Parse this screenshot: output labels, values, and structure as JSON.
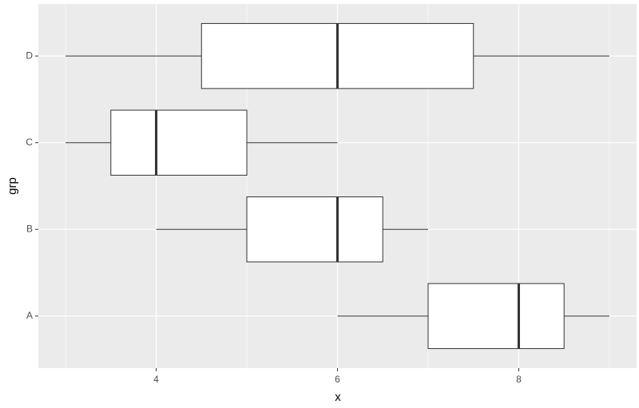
{
  "chart_data": {
    "type": "boxplot",
    "orientation": "horizontal",
    "xlabel": "x",
    "ylabel": "grp",
    "categories": [
      "A",
      "B",
      "C",
      "D"
    ],
    "boxes": [
      {
        "min": 6,
        "q1": 7,
        "median": 8,
        "q3": 8.5,
        "max": 9
      },
      {
        "min": 4,
        "q1": 5,
        "median": 6,
        "q3": 6.5,
        "max": 7
      },
      {
        "min": 3,
        "q1": 3.5,
        "median": 4,
        "q3": 5,
        "max": 6
      },
      {
        "min": 3,
        "q1": 4.5,
        "median": 6,
        "q3": 7.5,
        "max": 9
      }
    ],
    "xlim": [
      2.7,
      9.3
    ],
    "xticks": [
      4,
      6,
      8
    ],
    "xminor": [
      3,
      5,
      7,
      9
    ],
    "grid": true,
    "color": "#ffffff",
    "panel_color": "#ebebeb"
  }
}
